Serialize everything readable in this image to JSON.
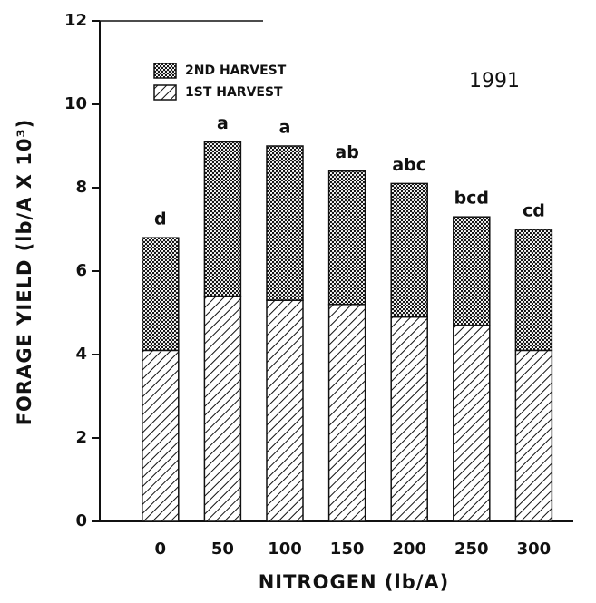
{
  "chart_data": {
    "type": "stacked-bar",
    "x_label": "NITROGEN (lb/A)",
    "y_label": "FORAGE YIELD (lb/A X 10³)",
    "annotation": "1991",
    "categories": [
      "0",
      "50",
      "100",
      "150",
      "200",
      "250",
      "300"
    ],
    "series": [
      {
        "name": "1ST HARVEST",
        "color": "#111111",
        "pattern": "hatch",
        "values": [
          4.1,
          5.4,
          5.3,
          5.2,
          4.9,
          4.7,
          4.1
        ]
      },
      {
        "name": "2ND HARVEST",
        "color": "#111111",
        "pattern": "crosshatch",
        "values": [
          2.7,
          3.7,
          3.7,
          3.2,
          3.2,
          2.6,
          2.9
        ]
      }
    ],
    "bar_annotations": [
      "d",
      "a",
      "a",
      "ab",
      "abc",
      "bcd",
      "cd"
    ],
    "ylim": [
      0,
      12
    ],
    "yticks": [
      0,
      2,
      4,
      6,
      8,
      10,
      12
    ]
  }
}
